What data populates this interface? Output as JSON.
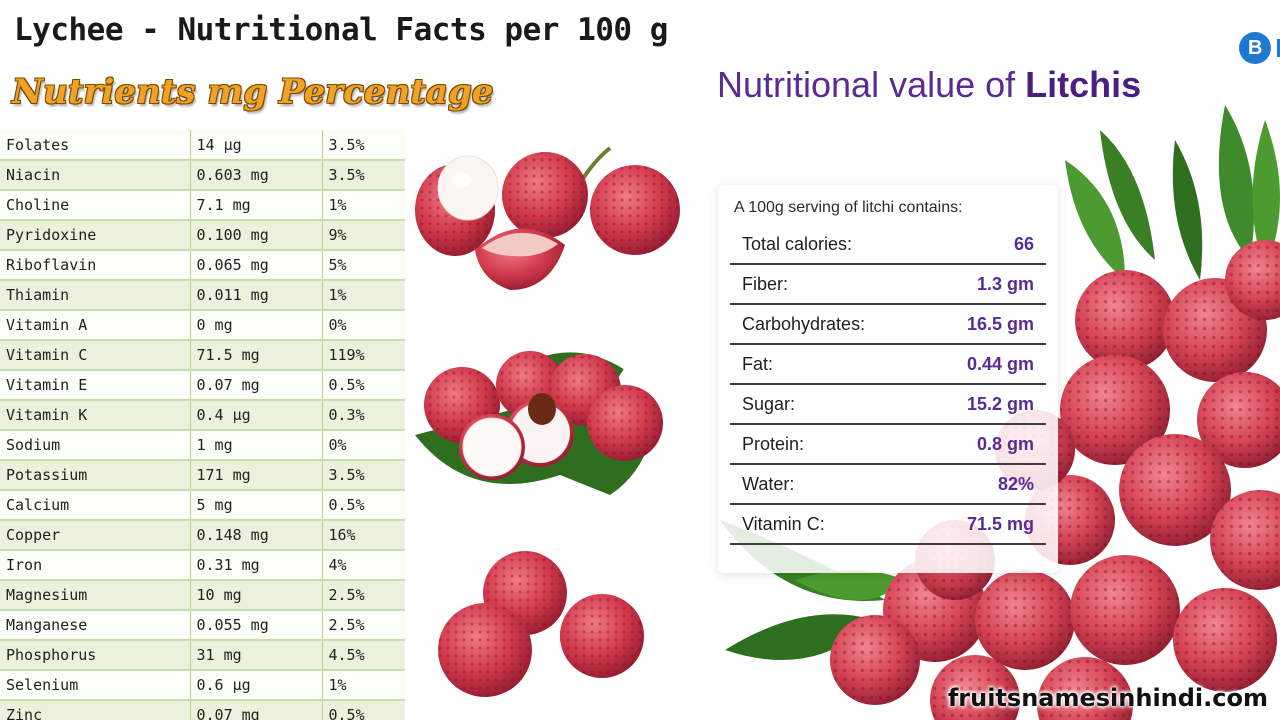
{
  "left": {
    "title": "Lychee - Nutritional Facts per 100 g",
    "subheader": "Nutrients mg Percentage",
    "rows": [
      {
        "name": "Folates",
        "amount": "14 µg",
        "percent": "3.5%"
      },
      {
        "name": "Niacin",
        "amount": "0.603 mg",
        "percent": "3.5%"
      },
      {
        "name": "Choline",
        "amount": "7.1 mg",
        "percent": "1%"
      },
      {
        "name": "Pyridoxine",
        "amount": "0.100 mg",
        "percent": "9%"
      },
      {
        "name": "Riboflavin",
        "amount": "0.065 mg",
        "percent": "5%"
      },
      {
        "name": "Thiamin",
        "amount": "0.011 mg",
        "percent": "1%"
      },
      {
        "name": "Vitamin A",
        "amount": "0 mg",
        "percent": "0%"
      },
      {
        "name": "Vitamin C",
        "amount": "71.5 mg",
        "percent": "119%"
      },
      {
        "name": "Vitamin E",
        "amount": "0.07 mg",
        "percent": "0.5%"
      },
      {
        "name": "Vitamin K",
        "amount": "0.4 µg",
        "percent": "0.3%"
      },
      {
        "name": "Sodium",
        "amount": "1 mg",
        "percent": "0%"
      },
      {
        "name": "Potassium",
        "amount": "171 mg",
        "percent": "3.5%"
      },
      {
        "name": "Calcium",
        "amount": "5 mg",
        "percent": "0.5%"
      },
      {
        "name": "Copper",
        "amount": "0.148 mg",
        "percent": "16%"
      },
      {
        "name": "Iron",
        "amount": "0.31 mg",
        "percent": "4%"
      },
      {
        "name": "Magnesium",
        "amount": "10 mg",
        "percent": "2.5%"
      },
      {
        "name": "Manganese",
        "amount": "0.055 mg",
        "percent": "2.5%"
      },
      {
        "name": "Phosphorus",
        "amount": "31 mg",
        "percent": "4.5%"
      },
      {
        "name": "Selenium",
        "amount": "0.6 µg",
        "percent": "1%"
      },
      {
        "name": "Zinc",
        "amount": "0.07 mg",
        "percent": "0.5%"
      }
    ]
  },
  "right": {
    "logo_mark": "B",
    "logo_text": "H",
    "heading_prefix": "Nutritional value of ",
    "heading_bold": "Litchis",
    "card_intro": "A 100g serving of litchi contains:",
    "items": [
      {
        "label": "Total calories:",
        "value": "66"
      },
      {
        "label": "Fiber:",
        "value": "1.3 gm"
      },
      {
        "label": "Carbohydrates:",
        "value": "16.5 gm"
      },
      {
        "label": "Fat:",
        "value": "0.44 gm"
      },
      {
        "label": "Sugar:",
        "value": "15.2 gm"
      },
      {
        "label": "Protein:",
        "value": "0.8 gm"
      },
      {
        "label": "Water:",
        "value": "82%"
      },
      {
        "label": "Vitamin C:",
        "value": "71.5 mg"
      }
    ],
    "watermark": "fruitsnamesinhindi.com"
  },
  "colors": {
    "title_purple": "#5b2b95",
    "subheader_orange": "#f1a125",
    "lychee_red": "#d23a4d",
    "leaf_green": "#3f8a2a",
    "table_green": "#eaf1dc",
    "logo_blue": "#1f78d1"
  }
}
